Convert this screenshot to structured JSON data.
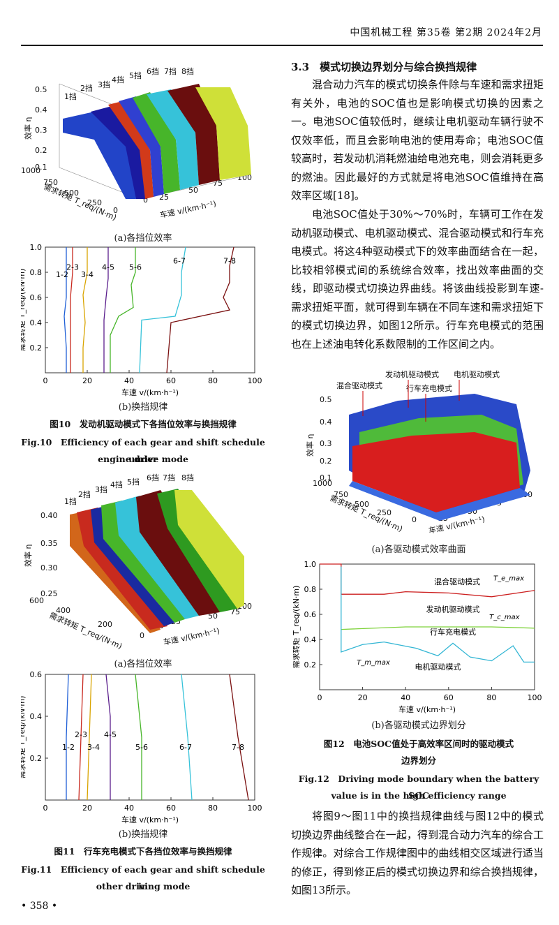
{
  "header": {
    "running_title": "中国机械工程 第35卷 第2期 2024年2月"
  },
  "page_number": "• 358 •",
  "left": {
    "fig10": {
      "sub_a": "(a)各挡位效率",
      "sub_b": "(b)换挡规律",
      "caption_cn": "图10　发动机驱动模式下各挡位效率与换挡规律",
      "caption_en_1": "Fig.10　Efficiency of each gear and shift schedule under",
      "caption_en_2": "engine drive mode",
      "a": {
        "zlabel": "效率 η",
        "ylabel": "需求转矩 T_req/(N·m)",
        "xlabel": "车速 v/(km·h⁻¹)",
        "zticks": [
          "0.5",
          "0.4",
          "0.3",
          "0.2",
          "0.1"
        ],
        "yticks": [
          "1000",
          "750",
          "500",
          "250",
          "0"
        ],
        "xticks": [
          "0",
          "25",
          "50",
          "75",
          "100"
        ],
        "gears": [
          "1挡",
          "2挡",
          "3挡",
          "4挡",
          "5挡",
          "6挡",
          "7挡",
          "8挡"
        ]
      },
      "b": {
        "ylabel": "需求转矩 T_req/(kN·m)",
        "xlabel": "车速 v/(km·h⁻¹)",
        "yticks": [
          "1.0",
          "0.8",
          "0.6",
          "0.4",
          "0.2"
        ],
        "xticks": [
          "0",
          "20",
          "40",
          "60",
          "80",
          "100"
        ],
        "labels": [
          "1-2",
          "2-3",
          "3-4",
          "4-5",
          "5-6",
          "6-7",
          "7-8"
        ]
      }
    },
    "fig11": {
      "sub_a": "(a)各挡位效率",
      "sub_b": "(b)换挡规律",
      "caption_cn": "图11　行车充电模式下各挡位效率与换挡规律",
      "caption_en_1": "Fig.11　Efficiency of each gear and shift schedule in",
      "caption_en_2": "other driving mode",
      "a": {
        "zlabel": "效率 η",
        "ylabel": "需求转矩 T_req/(N·m)",
        "xlabel": "车速 v/(km·h⁻¹)",
        "zticks": [
          "0.40",
          "0.35",
          "0.30",
          "0.25"
        ],
        "yticks": [
          "600",
          "400",
          "200",
          "0"
        ],
        "xticks": [
          "0",
          "25",
          "50",
          "75",
          "100"
        ],
        "gears": [
          "1挡",
          "2挡",
          "3挡",
          "4挡",
          "5挡",
          "6挡",
          "7挡",
          "8挡"
        ]
      },
      "b": {
        "ylabel": "需求转矩 T_req/(kN·m)",
        "xlabel": "车速 v/(km·h⁻¹)",
        "yticks": [
          "0.6",
          "0.4",
          "0.2"
        ],
        "xticks": [
          "0",
          "20",
          "40",
          "60",
          "80",
          "100"
        ],
        "labels": [
          "1-2",
          "2-3",
          "3-4",
          "4-5",
          "5-6",
          "6-7",
          "7-8"
        ]
      }
    }
  },
  "right": {
    "section_title": "3.3　模式切换边界划分与综合换挡规律",
    "para1": "混合动力汽车的模式切换条件除与车速和需求扭矩有关外，电池的SOC值也是影响模式切换的因素之一。电池SOC值较低时，继续让电机驱动车辆行驶不仅效率低，而且会影响电池的使用寿命；电池SOC值较高时，若发动机消耗燃油给电池充电，则会消耗更多的燃油。因此最好的方式就是将电池SOC值维持在高效率区域[18]。",
    "para2": "电池SOC值处于30%～70%时，车辆可工作在发动机驱动模式、电机驱动模式、混合驱动模式和行车充电模式。将这4种驱动模式下的效率曲面结合在一起，比较相邻模式间的系统综合效率，找出效率曲面的交线，即驱动模式切换边界曲线。将该曲线投影到车速-需求扭矩平面，就可得到车辆在不同车速和需求扭矩下的模式切换边界，如图12所示。行车充电模式的范围也在上述油电转化系数限制的工作区间之内。",
    "fig12": {
      "sub_a": "(a)各驱动模式效率曲面",
      "sub_b": "(b)各驱动模式边界划分",
      "caption_cn_1": "图12　电池SOC值处于高效率区间时的驱动模式",
      "caption_cn_2": "边界划分",
      "caption_en_1": "Fig.12　Driving mode boundary when the battery SOC",
      "caption_en_2": "value is in the high efficiency range",
      "a": {
        "zlabel": "效率 η",
        "ylabel": "需求转矩 T_req/(N·m)",
        "xlabel": "车速 v/(km·h⁻¹)",
        "zticks": [
          "0.5",
          "0.4",
          "0.3",
          "0.2",
          "0.1"
        ],
        "yticks": [
          "1000",
          "750",
          "500",
          "250",
          "0"
        ],
        "xticks": [
          "0",
          "25",
          "50",
          "75",
          "100"
        ],
        "mode_labels": [
          "混合驱动模式",
          "发动机驱动模式",
          "行车充电模式",
          "电机驱动模式"
        ]
      },
      "b": {
        "ylabel": "需求转矩 T_req/(kN·m)",
        "xlabel": "车速 v/(km·h⁻¹)",
        "yticks": [
          "1.0",
          "0.8",
          "0.6",
          "0.4",
          "0.2"
        ],
        "xticks": [
          "0",
          "20",
          "40",
          "60",
          "80",
          "100"
        ],
        "region_labels": [
          "混合驱动模式",
          "发动机驱动模式",
          "行车充电模式",
          "电机驱动模式"
        ],
        "curve_labels": [
          "T_e_max",
          "T_c_max",
          "T_m_max"
        ]
      }
    },
    "para3": "将图9～图11中的换挡规律曲线与图12中的模式切换边界曲线整合在一起，得到混合动力汽车的综合工作规律。对综合工作规律图中的曲线相交区域进行适当的修正，得到修正后的模式切换边界和综合换挡规律，如图13所示。"
  },
  "chart_data": [
    {
      "type": "line",
      "title": "",
      "xlabel": "车速 v/(km·h⁻¹)",
      "ylabel": "需求转矩 T_req/(kN·m)",
      "xlim": [
        0,
        100
      ],
      "ylim": [
        0,
        1.0
      ],
      "series": [
        {
          "name": "1-2",
          "color": "#1f5fd6",
          "points": [
            [
              10,
              1.0
            ],
            [
              10,
              0.6
            ],
            [
              9,
              0.45
            ],
            [
              10,
              0.2
            ],
            [
              10,
              0.0
            ]
          ]
        },
        {
          "name": "2-3",
          "color": "#c8281e",
          "points": [
            [
              13,
              1.0
            ],
            [
              13,
              0.8
            ],
            [
              12,
              0.6
            ],
            [
              12,
              0.35
            ],
            [
              12,
              0.0
            ]
          ]
        },
        {
          "name": "3-4",
          "color": "#d9a400",
          "points": [
            [
              20,
              1.0
            ],
            [
              20,
              0.8
            ],
            [
              18,
              0.62
            ],
            [
              19,
              0.4
            ],
            [
              18,
              0.2
            ],
            [
              18,
              0.0
            ]
          ]
        },
        {
          "name": "4-5",
          "color": "#5a1e8c",
          "points": [
            [
              30,
              1.0
            ],
            [
              30,
              0.75
            ],
            [
              29,
              0.6
            ],
            [
              28,
              0.42
            ],
            [
              28,
              0.0
            ]
          ]
        },
        {
          "name": "5-6",
          "color": "#47b52a",
          "points": [
            [
              43,
              1.0
            ],
            [
              43,
              0.8
            ],
            [
              41,
              0.7
            ],
            [
              42,
              0.52
            ],
            [
              35,
              0.45
            ],
            [
              31,
              0.3
            ],
            [
              31,
              0.0
            ]
          ]
        },
        {
          "name": "6-7",
          "color": "#36c2d9",
          "points": [
            [
              67,
              1.0
            ],
            [
              65,
              0.8
            ],
            [
              65,
              0.62
            ],
            [
              62,
              0.45
            ],
            [
              46,
              0.42
            ],
            [
              45,
              0.0
            ]
          ]
        },
        {
          "name": "7-8",
          "color": "#7a1010",
          "points": [
            [
              90,
              1.0
            ],
            [
              88,
              0.85
            ],
            [
              88,
              0.72
            ],
            [
              85,
              0.6
            ],
            [
              88,
              0.5
            ],
            [
              60,
              0.4
            ],
            [
              58,
              0.0
            ]
          ]
        }
      ]
    },
    {
      "type": "line",
      "title": "",
      "xlabel": "车速 v/(km·h⁻¹)",
      "ylabel": "需求转矩 T_req/(kN·m)",
      "xlim": [
        0,
        100
      ],
      "ylim": [
        0,
        0.6
      ],
      "series": [
        {
          "name": "1-2",
          "color": "#1f5fd6",
          "points": [
            [
              11,
              0.6
            ],
            [
              10,
              0.3
            ],
            [
              10,
              0.0
            ]
          ]
        },
        {
          "name": "2-3",
          "color": "#c8281e",
          "points": [
            [
              18,
              0.6
            ],
            [
              17,
              0.3
            ],
            [
              16,
              0.0
            ]
          ]
        },
        {
          "name": "3-4",
          "color": "#d9a400",
          "points": [
            [
              22,
              0.6
            ],
            [
              21,
              0.3
            ],
            [
              20,
              0.0
            ]
          ]
        },
        {
          "name": "4-5",
          "color": "#5a1e8c",
          "points": [
            [
              29,
              0.6
            ],
            [
              31,
              0.4
            ],
            [
              31,
              0.0
            ]
          ]
        },
        {
          "name": "5-6",
          "color": "#47b52a",
          "points": [
            [
              43,
              0.6
            ],
            [
              46,
              0.3
            ],
            [
              46,
              0.0
            ]
          ]
        },
        {
          "name": "6-7",
          "color": "#36c2d9",
          "points": [
            [
              65,
              0.6
            ],
            [
              68,
              0.3
            ],
            [
              70,
              0.0
            ]
          ]
        },
        {
          "name": "7-8",
          "color": "#7a1010",
          "points": [
            [
              88,
              0.6
            ],
            [
              92,
              0.3
            ],
            [
              97,
              0.0
            ]
          ]
        }
      ]
    },
    {
      "type": "line",
      "title": "",
      "xlabel": "车速 v/(km·h⁻¹)",
      "ylabel": "需求转矩 T_req/(kN·m)",
      "xlim": [
        0,
        100
      ],
      "ylim": [
        0,
        1.0
      ],
      "series": [
        {
          "name": "T_e_max",
          "color": "#cc1f1f",
          "points": [
            [
              0,
              1.0
            ],
            [
              10,
              1.0
            ],
            [
              10,
              0.76
            ],
            [
              30,
              0.76
            ],
            [
              40,
              0.78
            ],
            [
              60,
              0.77
            ],
            [
              80,
              0.74
            ],
            [
              100,
              0.79
            ]
          ]
        },
        {
          "name": "T_c_max",
          "color": "#7ed23a",
          "points": [
            [
              10,
              0.48
            ],
            [
              40,
              0.5
            ],
            [
              60,
              0.5
            ],
            [
              80,
              0.5
            ],
            [
              100,
              0.49
            ]
          ]
        },
        {
          "name": "T_m_max",
          "color": "#33b6d4",
          "points": [
            [
              10,
              0.98
            ],
            [
              10,
              0.3
            ],
            [
              20,
              0.36
            ],
            [
              30,
              0.38
            ],
            [
              45,
              0.33
            ],
            [
              55,
              0.27
            ],
            [
              62,
              0.37
            ],
            [
              70,
              0.26
            ],
            [
              80,
              0.23
            ],
            [
              90,
              0.35
            ],
            [
              95,
              0.22
            ],
            [
              100,
              0.22
            ]
          ]
        }
      ]
    }
  ]
}
